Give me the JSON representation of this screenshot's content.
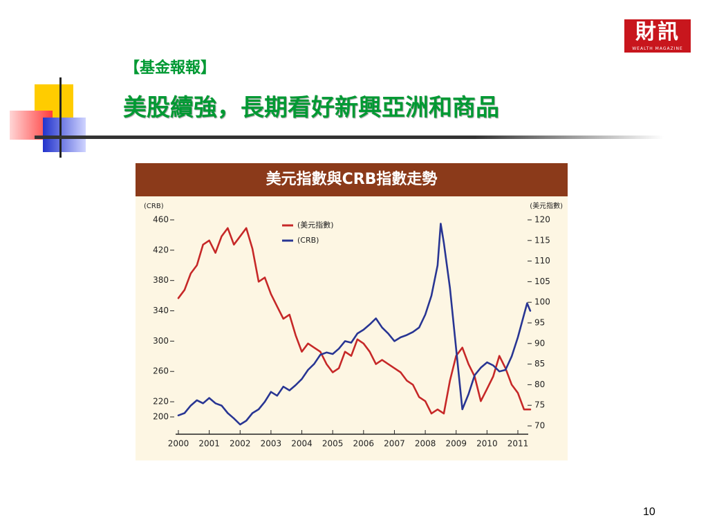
{
  "logo": {
    "main": "財訊",
    "sub": "WEALTH MAGAZINE"
  },
  "slide": {
    "subtitle": "【基金報報】",
    "title": "美股續強，長期看好新興亞洲和商品",
    "page_number": "10"
  },
  "colors": {
    "title_green": "#009933",
    "header_brown": "#8b3a1a",
    "usd_red": "#c62828",
    "crb_blue": "#283593",
    "panel_bg": "#fdf6e3"
  },
  "chart_data": {
    "type": "line",
    "title": "美元指數與CRB指數走勢",
    "left_axis": {
      "unit_label": "(CRB)",
      "ticks": [
        460,
        420,
        380,
        340,
        300,
        260,
        220,
        200
      ],
      "range": [
        190,
        470
      ]
    },
    "right_axis": {
      "unit_label": "(美元指數)",
      "ticks": [
        120,
        115,
        110,
        105,
        100,
        95,
        90,
        85,
        80,
        75,
        70
      ],
      "range": [
        70,
        120
      ]
    },
    "x_ticks": [
      "2000",
      "2001",
      "2002",
      "2003",
      "2004",
      "2005",
      "2006",
      "2007",
      "2008",
      "2009",
      "2010",
      "2011"
    ],
    "legend": [
      "(美元指數)",
      "(CRB)"
    ],
    "series": [
      {
        "name": "(美元指數)",
        "axis": "right",
        "color": "#c62828",
        "points": [
          [
            2000.0,
            101
          ],
          [
            2000.2,
            103
          ],
          [
            2000.4,
            107
          ],
          [
            2000.6,
            109
          ],
          [
            2000.8,
            114
          ],
          [
            2001.0,
            115
          ],
          [
            2001.2,
            112
          ],
          [
            2001.4,
            116
          ],
          [
            2001.6,
            118
          ],
          [
            2001.8,
            114
          ],
          [
            2002.0,
            116
          ],
          [
            2002.2,
            118
          ],
          [
            2002.4,
            113
          ],
          [
            2002.6,
            105
          ],
          [
            2002.8,
            106
          ],
          [
            2003.0,
            102
          ],
          [
            2003.2,
            99
          ],
          [
            2003.4,
            96
          ],
          [
            2003.6,
            97
          ],
          [
            2003.8,
            92
          ],
          [
            2004.0,
            88
          ],
          [
            2004.2,
            90
          ],
          [
            2004.4,
            89
          ],
          [
            2004.6,
            88
          ],
          [
            2004.8,
            85
          ],
          [
            2005.0,
            83
          ],
          [
            2005.2,
            84
          ],
          [
            2005.4,
            88
          ],
          [
            2005.6,
            87
          ],
          [
            2005.8,
            91
          ],
          [
            2006.0,
            90
          ],
          [
            2006.2,
            88
          ],
          [
            2006.4,
            85
          ],
          [
            2006.6,
            86
          ],
          [
            2006.8,
            85
          ],
          [
            2007.0,
            84
          ],
          [
            2007.2,
            83
          ],
          [
            2007.4,
            81
          ],
          [
            2007.6,
            80
          ],
          [
            2007.8,
            77
          ],
          [
            2008.0,
            76
          ],
          [
            2008.2,
            73
          ],
          [
            2008.4,
            74
          ],
          [
            2008.6,
            73
          ],
          [
            2008.8,
            81
          ],
          [
            2009.0,
            87
          ],
          [
            2009.2,
            89
          ],
          [
            2009.4,
            85
          ],
          [
            2009.6,
            82
          ],
          [
            2009.8,
            76
          ],
          [
            2010.0,
            79
          ],
          [
            2010.2,
            82
          ],
          [
            2010.4,
            87
          ],
          [
            2010.6,
            84
          ],
          [
            2010.8,
            80
          ],
          [
            2011.0,
            78
          ],
          [
            2011.2,
            74
          ],
          [
            2011.4,
            74
          ]
        ]
      },
      {
        "name": "(CRB)",
        "axis": "left",
        "color": "#283593",
        "points": [
          [
            2000.0,
            202
          ],
          [
            2000.2,
            205
          ],
          [
            2000.4,
            215
          ],
          [
            2000.6,
            222
          ],
          [
            2000.8,
            218
          ],
          [
            2001.0,
            225
          ],
          [
            2001.2,
            218
          ],
          [
            2001.4,
            215
          ],
          [
            2001.6,
            205
          ],
          [
            2001.8,
            198
          ],
          [
            2002.0,
            190
          ],
          [
            2002.2,
            195
          ],
          [
            2002.4,
            205
          ],
          [
            2002.6,
            210
          ],
          [
            2002.8,
            220
          ],
          [
            2003.0,
            233
          ],
          [
            2003.2,
            228
          ],
          [
            2003.4,
            240
          ],
          [
            2003.6,
            235
          ],
          [
            2003.8,
            242
          ],
          [
            2004.0,
            250
          ],
          [
            2004.2,
            262
          ],
          [
            2004.4,
            270
          ],
          [
            2004.6,
            282
          ],
          [
            2004.8,
            285
          ],
          [
            2005.0,
            283
          ],
          [
            2005.2,
            290
          ],
          [
            2005.4,
            300
          ],
          [
            2005.6,
            298
          ],
          [
            2005.8,
            310
          ],
          [
            2006.0,
            315
          ],
          [
            2006.2,
            322
          ],
          [
            2006.4,
            330
          ],
          [
            2006.6,
            318
          ],
          [
            2006.8,
            310
          ],
          [
            2007.0,
            300
          ],
          [
            2007.2,
            305
          ],
          [
            2007.4,
            308
          ],
          [
            2007.6,
            312
          ],
          [
            2007.8,
            318
          ],
          [
            2008.0,
            335
          ],
          [
            2008.2,
            360
          ],
          [
            2008.4,
            400
          ],
          [
            2008.5,
            455
          ],
          [
            2008.6,
            430
          ],
          [
            2008.8,
            370
          ],
          [
            2009.0,
            290
          ],
          [
            2009.2,
            210
          ],
          [
            2009.4,
            230
          ],
          [
            2009.6,
            255
          ],
          [
            2009.8,
            265
          ],
          [
            2010.0,
            272
          ],
          [
            2010.2,
            268
          ],
          [
            2010.4,
            260
          ],
          [
            2010.6,
            262
          ],
          [
            2010.8,
            280
          ],
          [
            2011.0,
            305
          ],
          [
            2011.2,
            335
          ],
          [
            2011.3,
            350
          ],
          [
            2011.4,
            340
          ]
        ]
      }
    ]
  }
}
